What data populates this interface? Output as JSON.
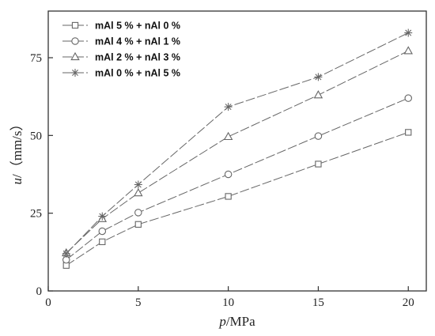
{
  "chart_data": {
    "type": "line",
    "title": "",
    "xlabel": "p/MPa",
    "xlabel_italic": "p",
    "xlabel_unit": "/MPa",
    "ylabel": "u/（mm/s）",
    "ylabel_italic": "u",
    "ylabel_unit": "/（mm/s）",
    "xlim": [
      0,
      21
    ],
    "ylim": [
      0,
      90
    ],
    "xticks": [
      0,
      5,
      10,
      15,
      20
    ],
    "yticks": [
      0,
      25,
      50,
      75
    ],
    "grid": false,
    "legend_position": "top-left",
    "line_color": "#666666",
    "line_style": "long-dash",
    "series": [
      {
        "name": "mAl 5 % + nAl 0 %",
        "marker": "square",
        "x": [
          1,
          3,
          5,
          10,
          15,
          20
        ],
        "values": [
          8.2,
          15.8,
          21.4,
          30.4,
          40.8,
          51.0
        ]
      },
      {
        "name": "mAl 4 % + nAl 1 %",
        "marker": "circle",
        "x": [
          1,
          3,
          5,
          10,
          15,
          20
        ],
        "values": [
          10.0,
          19.2,
          25.2,
          37.5,
          49.8,
          62.0
        ]
      },
      {
        "name": "mAl 2 % + nAl 3 %",
        "marker": "triangle",
        "x": [
          1,
          3,
          5,
          10,
          15,
          20
        ],
        "values": [
          12.2,
          23.2,
          31.5,
          49.6,
          63.0,
          77.2
        ]
      },
      {
        "name": "mAl 0 % + nAl 5 %",
        "marker": "asterisk",
        "x": [
          1,
          3,
          5,
          10,
          15,
          20
        ],
        "values": [
          12.0,
          24.0,
          34.2,
          59.2,
          68.8,
          83.0
        ]
      }
    ]
  }
}
